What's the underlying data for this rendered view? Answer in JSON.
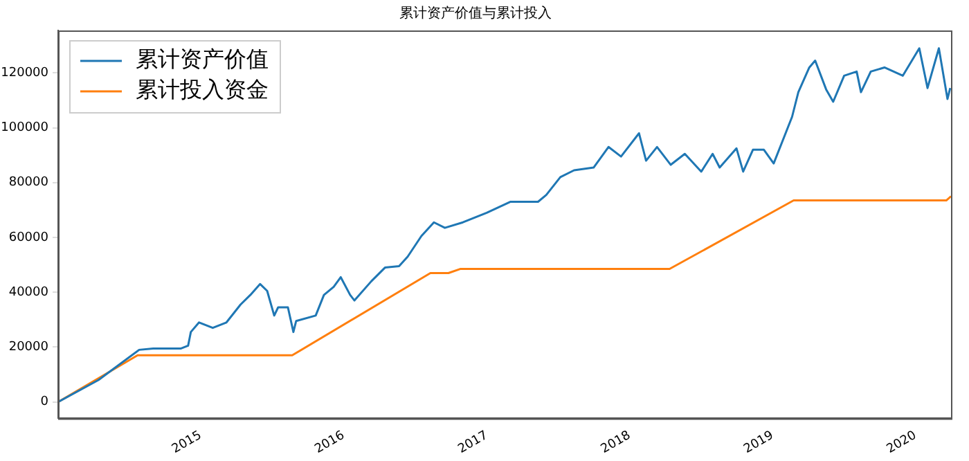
{
  "chart_data": {
    "type": "line",
    "title": "累计资产价值与累计投入",
    "series": [
      {
        "name": "累计资产价值",
        "color": "#1f77b4",
        "x": [
          "2014-01-02",
          "2014-04-15",
          "2014-07-28",
          "2014-09-02",
          "2014-11-12",
          "2014-11-30",
          "2014-12-07",
          "2014-12-28",
          "2015-02-01",
          "2015-03-08",
          "2015-04-13",
          "2015-05-08",
          "2015-06-02",
          "2015-06-20",
          "2015-07-08",
          "2015-07-18",
          "2015-08-12",
          "2015-08-26",
          "2015-09-02",
          "2015-10-22",
          "2015-11-12",
          "2015-12-07",
          "2015-12-25",
          "2016-01-18",
          "2016-01-29",
          "2016-03-12",
          "2016-04-16",
          "2016-05-22",
          "2016-06-13",
          "2016-07-18",
          "2016-08-19",
          "2016-09-16",
          "2016-11-01",
          "2017-01-01",
          "2017-03-02",
          "2017-05-12",
          "2017-06-02",
          "2017-07-08",
          "2017-08-12",
          "2017-10-01",
          "2017-11-08",
          "2017-12-10",
          "2018-01-25",
          "2018-02-12",
          "2018-03-12",
          "2018-04-16",
          "2018-05-22",
          "2018-07-03",
          "2018-08-01",
          "2018-08-19",
          "2018-10-01",
          "2018-10-18",
          "2018-11-12",
          "2018-12-10",
          "2019-01-04",
          "2019-02-20",
          "2019-03-08",
          "2019-04-05",
          "2019-04-20",
          "2019-05-18",
          "2019-06-05",
          "2019-07-03",
          "2019-08-04",
          "2019-08-15",
          "2019-09-09",
          "2019-10-14",
          "2019-11-30",
          "2020-01-11",
          "2020-02-01",
          "2020-03-01",
          "2020-03-23",
          "2020-03-30"
        ],
        "values": [
          0,
          8000,
          19000,
          19500,
          19500,
          20500,
          25500,
          29000,
          27000,
          29000,
          35500,
          39000,
          43000,
          40500,
          31500,
          34500,
          34500,
          25500,
          29500,
          31500,
          39000,
          42000,
          45500,
          39000,
          37000,
          44000,
          49000,
          49500,
          53000,
          60500,
          65500,
          63500,
          65500,
          69000,
          73000,
          73000,
          75500,
          82000,
          84500,
          85500,
          93000,
          89500,
          98000,
          88000,
          93000,
          86500,
          90500,
          84000,
          90500,
          85500,
          92500,
          84000,
          92000,
          92000,
          87000,
          104000,
          113000,
          122000,
          124500,
          114000,
          109500,
          119000,
          120500,
          113000,
          120500,
          122000,
          119000,
          129000,
          114500,
          129000,
          110500,
          114500
        ]
      },
      {
        "name": "累计投入资金",
        "color": "#ff7f0e",
        "x": [
          "2014-01-02",
          "2014-07-24",
          "2015-08-23",
          "2016-08-10",
          "2016-09-25",
          "2016-10-25",
          "2018-04-13",
          "2019-02-24",
          "2020-03-20",
          "2020-04-01"
        ],
        "values": [
          0,
          17000,
          17000,
          47000,
          47000,
          48500,
          48500,
          73500,
          73500,
          75000
        ]
      }
    ],
    "xlim": [
      "2014-01-02",
      "2020-04-01"
    ],
    "xticks": [
      "2015",
      "2016",
      "2017",
      "2018",
      "2019",
      "2020"
    ],
    "ylim": [
      -6000,
      135500
    ],
    "yticks": [
      0,
      20000,
      40000,
      60000,
      80000,
      100000,
      120000
    ],
    "legend": "top left",
    "grid": false,
    "marker": "none",
    "line_style": "solid"
  }
}
